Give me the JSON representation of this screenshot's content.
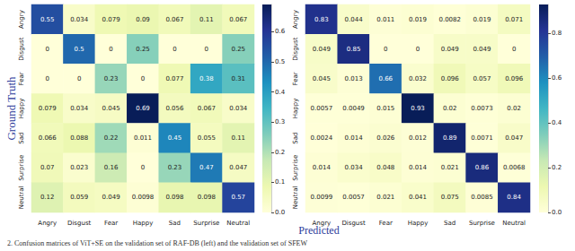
{
  "figure": {
    "xlabel": "Predicted",
    "ylabel": "Ground Truth",
    "caption": "2. Confusion matrices of ViT+SE on the validation set of RAF-DB (left) and the validation set of SFEW"
  },
  "chart_data": [
    {
      "type": "heatmap",
      "categories": [
        "Angry",
        "Disgust",
        "Fear",
        "Happy",
        "Sad",
        "Surprise",
        "Neutral"
      ],
      "cells": [
        [
          0.55,
          0.034,
          0.079,
          0.09,
          0.067,
          0.11,
          0.067
        ],
        [
          0,
          0.5,
          0,
          0.25,
          0,
          0,
          0.25
        ],
        [
          0,
          0,
          0.23,
          0,
          0.077,
          0.38,
          0.31
        ],
        [
          0.079,
          0.034,
          0.045,
          0.69,
          0.056,
          0.067,
          0.034
        ],
        [
          0.066,
          0.088,
          0.22,
          0.011,
          0.45,
          0.055,
          0.11
        ],
        [
          0.07,
          0.023,
          0.16,
          0,
          0.23,
          0.47,
          0.047
        ],
        [
          0.12,
          0.059,
          0.049,
          0.0098,
          0.098,
          0.098,
          0.57
        ]
      ],
      "colorbar": {
        "range": [
          0,
          0.69
        ],
        "ticks": [
          {
            "value": 0,
            "label": "0.0"
          },
          0.1,
          0.2,
          0.3,
          0.4,
          0.5,
          0.6
        ]
      },
      "data_labels": true
    },
    {
      "type": "heatmap",
      "categories": [
        "Angry",
        "Disgust",
        "Fear",
        "Happy",
        "Sad",
        "Surprise",
        "Neutral"
      ],
      "cells": [
        [
          0.83,
          0.044,
          0.011,
          0.019,
          0.0082,
          0.019,
          0.071
        ],
        [
          0.049,
          0.85,
          0,
          0,
          0.049,
          0.049,
          0
        ],
        [
          0.045,
          0.013,
          0.66,
          0.032,
          0.096,
          0.057,
          0.096
        ],
        [
          0.0057,
          0.0049,
          0.015,
          0.93,
          0.02,
          0.0073,
          0.02
        ],
        [
          0.0024,
          0.014,
          0.026,
          0.012,
          0.89,
          0.0071,
          0.047
        ],
        [
          0.014,
          0.034,
          0.048,
          0.014,
          0.021,
          0.86,
          0.0068
        ],
        [
          0.0099,
          0.0057,
          0.021,
          0.041,
          0.075,
          0.0085,
          0.84
        ]
      ],
      "colorbar": {
        "range": [
          0,
          0.93
        ],
        "ticks": [
          {
            "value": 0,
            "label": "0.0"
          },
          0.2,
          0.4,
          0.6,
          0.8
        ]
      },
      "data_labels": true
    }
  ]
}
